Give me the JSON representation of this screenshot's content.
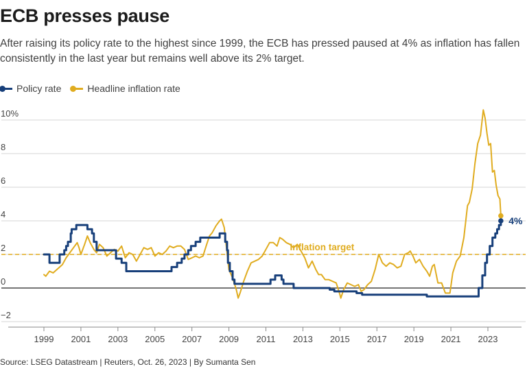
{
  "header": {
    "title": "ECB presses pause",
    "subtitle": "After raising its policy rate to the highest since 1999, the ECB has pressed paused at 4% as inflation has fallen consistently in the last year but remains well above its 2% target."
  },
  "legend": [
    {
      "label": "Policy rate",
      "color": "#173f7a"
    },
    {
      "label": "Headline inflation rate",
      "color": "#e0ac1f"
    }
  ],
  "footer": {
    "source": "Source: LSEG Datastream | Reuters, Oct. 26, 2023 | By Sumanta Sen"
  },
  "chart_data": {
    "type": "line",
    "xlim": [
      1998.5,
      2024.5
    ],
    "ylim": [
      -2,
      10.6
    ],
    "x_ticks": [
      1999,
      2001,
      2003,
      2005,
      2007,
      2009,
      2011,
      2013,
      2015,
      2017,
      2019,
      2021,
      2023
    ],
    "x_tick_labels": [
      "1999",
      "2001",
      "2003",
      "2005",
      "2007",
      "2009",
      "2011",
      "2013",
      "2015",
      "2017",
      "2019",
      "2021",
      "2023"
    ],
    "y_ticks": [
      -2,
      0,
      2,
      4,
      6,
      8,
      10
    ],
    "y_tick_labels": [
      "−2",
      "0",
      "2",
      "4",
      "6",
      "8",
      "10%"
    ],
    "grid": true,
    "legend_position": "top-left",
    "reference_line": {
      "label": "Inflation target",
      "value": 2,
      "color": "#e0ac1f"
    },
    "end_label": {
      "text": "4%",
      "x": 2023.75,
      "y": 4.0
    },
    "series": [
      {
        "name": "Policy rate",
        "color": "#173f7a",
        "step": true,
        "points": [
          [
            1999.0,
            2.0
          ],
          [
            1999.3,
            2.0
          ],
          [
            1999.3,
            1.5
          ],
          [
            1999.85,
            1.5
          ],
          [
            1999.85,
            2.0
          ],
          [
            2000.1,
            2.0
          ],
          [
            2000.1,
            2.25
          ],
          [
            2000.2,
            2.25
          ],
          [
            2000.2,
            2.5
          ],
          [
            2000.3,
            2.5
          ],
          [
            2000.3,
            2.75
          ],
          [
            2000.45,
            2.75
          ],
          [
            2000.45,
            3.25
          ],
          [
            2000.5,
            3.25
          ],
          [
            2000.5,
            3.5
          ],
          [
            2000.75,
            3.5
          ],
          [
            2000.75,
            3.75
          ],
          [
            2001.35,
            3.75
          ],
          [
            2001.35,
            3.5
          ],
          [
            2001.6,
            3.5
          ],
          [
            2001.6,
            3.25
          ],
          [
            2001.7,
            3.25
          ],
          [
            2001.7,
            2.75
          ],
          [
            2001.85,
            2.75
          ],
          [
            2001.85,
            2.25
          ],
          [
            2002.9,
            2.25
          ],
          [
            2002.9,
            1.75
          ],
          [
            2003.2,
            1.75
          ],
          [
            2003.2,
            1.5
          ],
          [
            2003.45,
            1.5
          ],
          [
            2003.45,
            1.0
          ],
          [
            2005.9,
            1.0
          ],
          [
            2005.9,
            1.25
          ],
          [
            2006.2,
            1.25
          ],
          [
            2006.2,
            1.5
          ],
          [
            2006.45,
            1.5
          ],
          [
            2006.45,
            1.75
          ],
          [
            2006.6,
            1.75
          ],
          [
            2006.6,
            2.0
          ],
          [
            2006.8,
            2.0
          ],
          [
            2006.8,
            2.25
          ],
          [
            2006.95,
            2.25
          ],
          [
            2006.95,
            2.5
          ],
          [
            2007.2,
            2.5
          ],
          [
            2007.2,
            2.75
          ],
          [
            2007.45,
            2.75
          ],
          [
            2007.45,
            3.0
          ],
          [
            2008.5,
            3.0
          ],
          [
            2008.5,
            3.25
          ],
          [
            2008.8,
            3.25
          ],
          [
            2008.8,
            2.75
          ],
          [
            2008.9,
            2.75
          ],
          [
            2008.9,
            2.25
          ],
          [
            2008.95,
            2.25
          ],
          [
            2008.95,
            1.5
          ],
          [
            2009.05,
            1.5
          ],
          [
            2009.05,
            1.0
          ],
          [
            2009.2,
            1.0
          ],
          [
            2009.2,
            0.5
          ],
          [
            2009.3,
            0.5
          ],
          [
            2009.3,
            0.25
          ],
          [
            2011.25,
            0.25
          ],
          [
            2011.25,
            0.5
          ],
          [
            2011.5,
            0.5
          ],
          [
            2011.5,
            0.75
          ],
          [
            2011.85,
            0.75
          ],
          [
            2011.85,
            0.5
          ],
          [
            2011.95,
            0.5
          ],
          [
            2011.95,
            0.25
          ],
          [
            2012.5,
            0.25
          ],
          [
            2012.5,
            0.0
          ],
          [
            2014.45,
            0.0
          ],
          [
            2014.45,
            -0.1
          ],
          [
            2014.7,
            -0.1
          ],
          [
            2014.7,
            -0.2
          ],
          [
            2015.9,
            -0.2
          ],
          [
            2015.9,
            -0.3
          ],
          [
            2016.2,
            -0.3
          ],
          [
            2016.2,
            -0.4
          ],
          [
            2019.7,
            -0.4
          ],
          [
            2019.7,
            -0.5
          ],
          [
            2022.5,
            -0.5
          ],
          [
            2022.5,
            0.0
          ],
          [
            2022.7,
            0.0
          ],
          [
            2022.7,
            0.75
          ],
          [
            2022.85,
            0.75
          ],
          [
            2022.85,
            1.5
          ],
          [
            2022.95,
            1.5
          ],
          [
            2022.95,
            2.0
          ],
          [
            2023.1,
            2.0
          ],
          [
            2023.1,
            2.5
          ],
          [
            2023.25,
            2.5
          ],
          [
            2023.25,
            3.0
          ],
          [
            2023.4,
            3.0
          ],
          [
            2023.4,
            3.25
          ],
          [
            2023.5,
            3.25
          ],
          [
            2023.5,
            3.5
          ],
          [
            2023.6,
            3.5
          ],
          [
            2023.6,
            3.75
          ],
          [
            2023.7,
            3.75
          ],
          [
            2023.7,
            4.0
          ]
        ]
      },
      {
        "name": "Headline inflation rate",
        "color": "#e0ac1f",
        "step": false,
        "points": [
          [
            1999.0,
            0.8
          ],
          [
            1999.1,
            0.7
          ],
          [
            1999.3,
            1.0
          ],
          [
            1999.5,
            0.9
          ],
          [
            1999.8,
            1.2
          ],
          [
            2000.0,
            1.4
          ],
          [
            2000.2,
            1.8
          ],
          [
            2000.4,
            2.1
          ],
          [
            2000.6,
            2.4
          ],
          [
            2000.8,
            2.7
          ],
          [
            2000.9,
            2.4
          ],
          [
            2001.0,
            2.0
          ],
          [
            2001.2,
            2.6
          ],
          [
            2001.35,
            3.1
          ],
          [
            2001.5,
            2.7
          ],
          [
            2001.7,
            2.3
          ],
          [
            2001.85,
            2.1
          ],
          [
            2002.0,
            2.6
          ],
          [
            2002.2,
            2.4
          ],
          [
            2002.4,
            1.9
          ],
          [
            2002.6,
            2.1
          ],
          [
            2002.8,
            2.3
          ],
          [
            2003.0,
            2.2
          ],
          [
            2003.2,
            2.5
          ],
          [
            2003.4,
            1.8
          ],
          [
            2003.6,
            2.1
          ],
          [
            2003.8,
            2.0
          ],
          [
            2004.0,
            1.6
          ],
          [
            2004.2,
            2.0
          ],
          [
            2004.4,
            2.4
          ],
          [
            2004.6,
            2.3
          ],
          [
            2004.8,
            2.4
          ],
          [
            2005.0,
            1.9
          ],
          [
            2005.2,
            2.1
          ],
          [
            2005.4,
            2.0
          ],
          [
            2005.6,
            2.2
          ],
          [
            2005.8,
            2.5
          ],
          [
            2006.0,
            2.4
          ],
          [
            2006.2,
            2.5
          ],
          [
            2006.4,
            2.5
          ],
          [
            2006.6,
            2.3
          ],
          [
            2006.8,
            1.7
          ],
          [
            2007.0,
            1.8
          ],
          [
            2007.2,
            1.9
          ],
          [
            2007.4,
            1.8
          ],
          [
            2007.6,
            1.9
          ],
          [
            2007.8,
            2.6
          ],
          [
            2007.95,
            3.1
          ],
          [
            2008.1,
            3.3
          ],
          [
            2008.3,
            3.7
          ],
          [
            2008.5,
            4.0
          ],
          [
            2008.6,
            4.1
          ],
          [
            2008.75,
            3.6
          ],
          [
            2008.9,
            2.1
          ],
          [
            2009.0,
            1.1
          ],
          [
            2009.2,
            0.6
          ],
          [
            2009.4,
            -0.1
          ],
          [
            2009.5,
            -0.6
          ],
          [
            2009.6,
            -0.3
          ],
          [
            2009.8,
            0.4
          ],
          [
            2010.0,
            1.0
          ],
          [
            2010.2,
            1.5
          ],
          [
            2010.4,
            1.6
          ],
          [
            2010.6,
            1.7
          ],
          [
            2010.8,
            1.9
          ],
          [
            2011.0,
            2.3
          ],
          [
            2011.2,
            2.7
          ],
          [
            2011.4,
            2.7
          ],
          [
            2011.6,
            2.5
          ],
          [
            2011.75,
            3.0
          ],
          [
            2011.9,
            2.9
          ],
          [
            2012.1,
            2.7
          ],
          [
            2012.3,
            2.6
          ],
          [
            2012.5,
            2.4
          ],
          [
            2012.7,
            2.6
          ],
          [
            2012.9,
            2.2
          ],
          [
            2013.1,
            1.8
          ],
          [
            2013.3,
            1.2
          ],
          [
            2013.5,
            1.6
          ],
          [
            2013.7,
            1.1
          ],
          [
            2013.85,
            0.8
          ],
          [
            2014.0,
            0.8
          ],
          [
            2014.2,
            0.5
          ],
          [
            2014.4,
            0.5
          ],
          [
            2014.6,
            0.4
          ],
          [
            2014.8,
            0.3
          ],
          [
            2014.95,
            -0.2
          ],
          [
            2015.05,
            -0.6
          ],
          [
            2015.2,
            -0.1
          ],
          [
            2015.4,
            0.3
          ],
          [
            2015.6,
            0.2
          ],
          [
            2015.8,
            0.1
          ],
          [
            2016.0,
            0.2
          ],
          [
            2016.15,
            -0.2
          ],
          [
            2016.3,
            -0.1
          ],
          [
            2016.5,
            0.2
          ],
          [
            2016.7,
            0.4
          ],
          [
            2016.9,
            1.1
          ],
          [
            2017.1,
            2.0
          ],
          [
            2017.3,
            1.5
          ],
          [
            2017.5,
            1.3
          ],
          [
            2017.7,
            1.5
          ],
          [
            2017.9,
            1.4
          ],
          [
            2018.1,
            1.2
          ],
          [
            2018.3,
            1.3
          ],
          [
            2018.5,
            2.0
          ],
          [
            2018.7,
            2.1
          ],
          [
            2018.8,
            2.2
          ],
          [
            2018.95,
            1.9
          ],
          [
            2019.1,
            1.5
          ],
          [
            2019.3,
            1.7
          ],
          [
            2019.5,
            1.3
          ],
          [
            2019.7,
            1.0
          ],
          [
            2019.85,
            0.7
          ],
          [
            2020.0,
            1.3
          ],
          [
            2020.1,
            1.4
          ],
          [
            2020.3,
            0.3
          ],
          [
            2020.5,
            0.3
          ],
          [
            2020.7,
            -0.3
          ],
          [
            2020.95,
            -0.3
          ],
          [
            2021.1,
            0.9
          ],
          [
            2021.3,
            1.6
          ],
          [
            2021.5,
            1.9
          ],
          [
            2021.7,
            3.0
          ],
          [
            2021.9,
            4.9
          ],
          [
            2022.0,
            5.1
          ],
          [
            2022.15,
            5.9
          ],
          [
            2022.3,
            7.4
          ],
          [
            2022.45,
            8.6
          ],
          [
            2022.6,
            9.1
          ],
          [
            2022.75,
            10.6
          ],
          [
            2022.85,
            10.1
          ],
          [
            2022.95,
            9.2
          ],
          [
            2023.05,
            8.5
          ],
          [
            2023.15,
            8.6
          ],
          [
            2023.25,
            6.9
          ],
          [
            2023.35,
            7.0
          ],
          [
            2023.45,
            6.1
          ],
          [
            2023.55,
            5.5
          ],
          [
            2023.65,
            5.3
          ],
          [
            2023.7,
            4.3
          ]
        ]
      }
    ]
  }
}
